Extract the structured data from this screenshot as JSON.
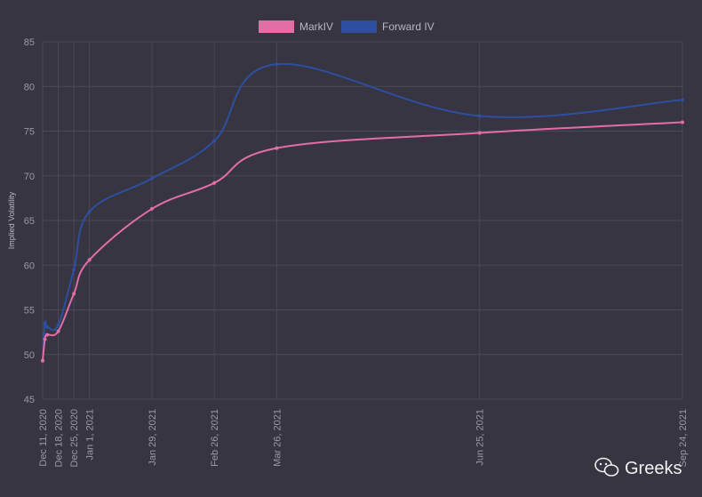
{
  "chart_data": {
    "type": "line",
    "ylabel": "Implied Volatility",
    "ylim": [
      45,
      85
    ],
    "yticks": [
      45,
      50,
      55,
      60,
      65,
      70,
      75,
      80,
      85
    ],
    "grid": true,
    "legend_position": "top-center",
    "x_tick_labels": [
      "Dec 11, 2020",
      "Dec 18, 2020",
      "Dec 25, 2020",
      "Jan 1, 2021",
      "Jan 29, 2021",
      "Feb 26, 2021",
      "Mar 26, 2021",
      "Jun 25, 2021",
      "Sep 24, 2021"
    ],
    "x": [
      "2020-12-11",
      "2020-12-12",
      "2020-12-13",
      "2020-12-18",
      "2020-12-25",
      "2021-01-01",
      "2021-01-29",
      "2021-02-26",
      "2021-03-26",
      "2021-06-25",
      "2021-09-24"
    ],
    "series": [
      {
        "name": "MarkIV",
        "color": "#e36ea6",
        "values": [
          49.3,
          51.7,
          52.2,
          52.6,
          56.8,
          60.6,
          66.3,
          69.2,
          73.1,
          74.8,
          76.0
        ]
      },
      {
        "name": "Forward IV",
        "color": "#2e4fa0",
        "values": [
          49.3,
          53.5,
          53.1,
          53.3,
          59.5,
          66.0,
          69.7,
          73.9,
          82.5,
          76.7,
          78.5
        ]
      }
    ]
  },
  "watermark": {
    "text": "Greeks",
    "icon": "wechat-icon"
  }
}
